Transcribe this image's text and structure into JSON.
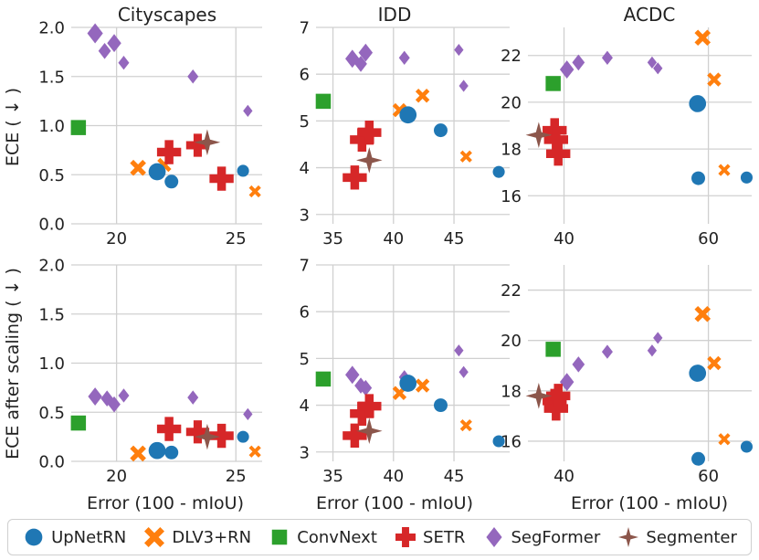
{
  "colors": {
    "UpNetRN": "#1f77b4",
    "DLV3+RN": "#ff7f0e",
    "ConvNext": "#2ca02c",
    "SETR": "#d62728",
    "SegFormer": "#9467bd",
    "Segmenter": "#8c564b",
    "grid": "#d0d0d0",
    "text": "#222222"
  },
  "legend": {
    "entries": [
      {
        "model": "UpNetRN",
        "label": "UpNetRN",
        "marker": "circle-icon"
      },
      {
        "model": "DLV3+RN",
        "label": "DLV3+RN",
        "marker": "cross-x-icon"
      },
      {
        "model": "ConvNext",
        "label": "ConvNext",
        "marker": "square-icon"
      },
      {
        "model": "SETR",
        "label": "SETR",
        "marker": "plus-icon"
      },
      {
        "model": "SegFormer",
        "label": "SegFormer",
        "marker": "diamond-icon"
      },
      {
        "model": "Segmenter",
        "label": "Segmenter",
        "marker": "star-icon"
      }
    ]
  },
  "chart_data": [
    {
      "type": "scatter",
      "title": "Cityscapes",
      "xlabel": "",
      "ylabel": "ECE ( ↓ )",
      "xlim": [
        18.1,
        26.1
      ],
      "ylim": [
        0,
        2.0
      ],
      "xticks": [
        20,
        25
      ],
      "yticks": [
        0.0,
        0.5,
        1.0,
        1.5,
        2.0
      ],
      "xticklabels": [
        "20",
        "25"
      ],
      "yticklabels": [
        "0.0",
        "0.5",
        "1.0",
        "1.5",
        "2.0"
      ],
      "grid": true,
      "series": [
        {
          "name": "UpNetRN",
          "points": [
            [
              21.7,
              0.53,
              1.0
            ],
            [
              22.3,
              0.43,
              0.8
            ],
            [
              25.3,
              0.54,
              0.7
            ]
          ]
        },
        {
          "name": "DLV3+RN",
          "points": [
            [
              20.9,
              0.57,
              0.8
            ],
            [
              22.0,
              0.6,
              0.7
            ],
            [
              25.8,
              0.33,
              0.6
            ]
          ]
        },
        {
          "name": "ConvNext",
          "points": [
            [
              18.4,
              0.98,
              1.0
            ]
          ]
        },
        {
          "name": "SETR",
          "points": [
            [
              22.2,
              0.73,
              1.2
            ],
            [
              23.4,
              0.8,
              1.15
            ],
            [
              24.4,
              0.46,
              1.2
            ]
          ]
        },
        {
          "name": "SegFormer",
          "points": [
            [
              19.1,
              1.94,
              1.0
            ],
            [
              19.5,
              1.76,
              0.8
            ],
            [
              19.9,
              1.84,
              0.9
            ],
            [
              20.3,
              1.64,
              0.7
            ],
            [
              23.2,
              1.5,
              0.7
            ],
            [
              25.5,
              1.15,
              0.6
            ]
          ]
        },
        {
          "name": "Segmenter",
          "points": [
            [
              23.8,
              0.83,
              1.3
            ]
          ]
        }
      ]
    },
    {
      "type": "scatter",
      "title": "IDD",
      "xlabel": "",
      "ylabel": "",
      "xlim": [
        33.6,
        49.6
      ],
      "ylim": [
        2.8,
        7.0
      ],
      "xticks": [
        35,
        40,
        45
      ],
      "yticks": [
        3,
        4,
        5,
        6,
        7
      ],
      "xticklabels": [
        "35",
        "40",
        "45"
      ],
      "yticklabels": [
        "3",
        "4",
        "5",
        "6",
        "7"
      ],
      "grid": true,
      "series": [
        {
          "name": "UpNetRN",
          "points": [
            [
              41.2,
              5.13,
              1.0
            ],
            [
              43.9,
              4.8,
              0.8
            ],
            [
              48.7,
              3.91,
              0.7
            ]
          ]
        },
        {
          "name": "DLV3+RN",
          "points": [
            [
              40.5,
              5.23,
              0.7
            ],
            [
              42.4,
              5.54,
              0.7
            ],
            [
              46.0,
              4.24,
              0.6
            ]
          ]
        },
        {
          "name": "ConvNext",
          "points": [
            [
              34.2,
              5.42,
              1.0
            ]
          ]
        },
        {
          "name": "SETR",
          "points": [
            [
              36.8,
              3.79,
              1.2
            ],
            [
              37.4,
              4.6,
              1.2
            ],
            [
              38.0,
              4.75,
              1.2
            ]
          ]
        },
        {
          "name": "SegFormer",
          "points": [
            [
              36.6,
              6.33,
              0.9
            ],
            [
              37.3,
              6.22,
              0.8
            ],
            [
              37.7,
              6.46,
              0.9
            ],
            [
              40.9,
              6.35,
              0.7
            ],
            [
              45.4,
              6.52,
              0.6
            ],
            [
              45.8,
              5.75,
              0.6
            ]
          ]
        },
        {
          "name": "Segmenter",
          "points": [
            [
              38.0,
              4.16,
              1.3
            ]
          ]
        }
      ]
    },
    {
      "type": "scatter",
      "title": "ACDC",
      "xlabel": "",
      "ylabel": "",
      "xlim": [
        35,
        66
      ],
      "ylim": [
        14.8,
        23.2
      ],
      "xticks": [
        40,
        60
      ],
      "yticks": [
        16,
        18,
        20,
        22
      ],
      "xticklabels": [
        "40",
        "60"
      ],
      "yticklabels": [
        "16",
        "18",
        "20",
        "22"
      ],
      "grid": true,
      "series": [
        {
          "name": "UpNetRN",
          "points": [
            [
              58.5,
              19.94,
              1.0
            ],
            [
              58.6,
              16.75,
              0.8
            ],
            [
              65.3,
              16.78,
              0.7
            ]
          ]
        },
        {
          "name": "DLV3+RN",
          "points": [
            [
              59.2,
              22.76,
              0.8
            ],
            [
              60.8,
              20.97,
              0.7
            ],
            [
              62.2,
              17.1,
              0.6
            ]
          ]
        },
        {
          "name": "ConvNext",
          "points": [
            [
              38.5,
              20.8,
              1.0
            ]
          ]
        },
        {
          "name": "SETR",
          "points": [
            [
              38.7,
              18.8,
              1.2
            ],
            [
              38.9,
              18.4,
              1.2
            ],
            [
              39.2,
              17.8,
              1.2
            ]
          ]
        },
        {
          "name": "SegFormer",
          "points": [
            [
              40.4,
              21.4,
              0.9
            ],
            [
              42.0,
              21.7,
              0.8
            ],
            [
              46.0,
              21.9,
              0.7
            ],
            [
              52.2,
              21.7,
              0.6
            ],
            [
              53.0,
              21.45,
              0.6
            ]
          ]
        },
        {
          "name": "Segmenter",
          "points": [
            [
              36.5,
              18.6,
              1.3
            ]
          ]
        }
      ]
    },
    {
      "type": "scatter",
      "title": "",
      "xlabel": "Error (100 - mIoU)",
      "ylabel": "ECE after scaling ( ↓ )",
      "xlim": [
        18.1,
        26.1
      ],
      "ylim": [
        0,
        2.0
      ],
      "xticks": [
        20,
        25
      ],
      "yticks": [
        0.0,
        0.5,
        1.0,
        1.5,
        2.0
      ],
      "xticklabels": [
        "20",
        "25"
      ],
      "yticklabels": [
        "0.0",
        "0.5",
        "1.0",
        "1.5",
        "2.0"
      ],
      "grid": true,
      "series": [
        {
          "name": "UpNetRN",
          "points": [
            [
              21.7,
              0.11,
              1.0
            ],
            [
              22.3,
              0.09,
              0.8
            ],
            [
              25.3,
              0.25,
              0.7
            ]
          ]
        },
        {
          "name": "DLV3+RN",
          "points": [
            [
              20.9,
              0.08,
              0.8
            ],
            [
              25.8,
              0.1,
              0.6
            ]
          ]
        },
        {
          "name": "ConvNext",
          "points": [
            [
              18.4,
              0.39,
              1.0
            ]
          ]
        },
        {
          "name": "SETR",
          "points": [
            [
              22.2,
              0.33,
              1.2
            ],
            [
              23.4,
              0.3,
              1.15
            ],
            [
              24.4,
              0.26,
              1.2
            ]
          ]
        },
        {
          "name": "SegFormer",
          "points": [
            [
              19.1,
              0.66,
              0.9
            ],
            [
              19.6,
              0.64,
              0.8
            ],
            [
              19.9,
              0.58,
              0.8
            ],
            [
              20.3,
              0.67,
              0.7
            ],
            [
              23.2,
              0.65,
              0.7
            ],
            [
              25.5,
              0.48,
              0.6
            ]
          ]
        },
        {
          "name": "Segmenter",
          "points": [
            [
              23.8,
              0.25,
              1.3
            ]
          ]
        }
      ]
    },
    {
      "type": "scatter",
      "title": "",
      "xlabel": "Error (100 - mIoU)",
      "ylabel": "",
      "xlim": [
        33.6,
        49.6
      ],
      "ylim": [
        2.8,
        7.0
      ],
      "xticks": [
        35,
        40,
        45
      ],
      "yticks": [
        3,
        4,
        5,
        6,
        7
      ],
      "xticklabels": [
        "35",
        "40",
        "45"
      ],
      "yticklabels": [
        "3",
        "4",
        "5",
        "6",
        "7"
      ],
      "grid": true,
      "series": [
        {
          "name": "UpNetRN",
          "points": [
            [
              41.2,
              4.47,
              1.0
            ],
            [
              43.9,
              4.0,
              0.8
            ],
            [
              48.7,
              3.23,
              0.7
            ]
          ]
        },
        {
          "name": "DLV3+RN",
          "points": [
            [
              40.5,
              4.26,
              0.7
            ],
            [
              42.4,
              4.42,
              0.7
            ],
            [
              46.0,
              3.57,
              0.6
            ]
          ]
        },
        {
          "name": "ConvNext",
          "points": [
            [
              34.2,
              4.56,
              1.0
            ]
          ]
        },
        {
          "name": "SETR",
          "points": [
            [
              36.8,
              3.35,
              1.2
            ],
            [
              37.4,
              3.82,
              1.2
            ],
            [
              38.0,
              3.98,
              1.2
            ]
          ]
        },
        {
          "name": "SegFormer",
          "points": [
            [
              36.6,
              4.65,
              0.9
            ],
            [
              37.3,
              4.42,
              0.8
            ],
            [
              37.7,
              4.37,
              0.8
            ],
            [
              40.9,
              4.6,
              0.7
            ],
            [
              45.4,
              5.17,
              0.6
            ],
            [
              45.8,
              4.71,
              0.6
            ]
          ]
        },
        {
          "name": "Segmenter",
          "points": [
            [
              38.0,
              3.45,
              1.3
            ]
          ]
        }
      ]
    },
    {
      "type": "scatter",
      "title": "",
      "xlabel": "Error (100 - mIoU)",
      "ylabel": "",
      "xlim": [
        35,
        66
      ],
      "ylim": [
        15.2,
        23.0
      ],
      "xticks": [
        40,
        60
      ],
      "yticks": [
        16,
        18,
        20,
        22
      ],
      "xticklabels": [
        "40",
        "60"
      ],
      "yticklabels": [
        "16",
        "18",
        "20",
        "22"
      ],
      "grid": true,
      "series": [
        {
          "name": "UpNetRN",
          "points": [
            [
              58.5,
              18.7,
              1.0
            ],
            [
              58.6,
              15.3,
              0.8
            ],
            [
              65.3,
              15.78,
              0.7
            ]
          ]
        },
        {
          "name": "DLV3+RN",
          "points": [
            [
              59.2,
              21.05,
              0.8
            ],
            [
              60.8,
              19.1,
              0.7
            ],
            [
              62.2,
              16.08,
              0.6
            ]
          ]
        },
        {
          "name": "ConvNext",
          "points": [
            [
              38.5,
              19.65,
              1.0
            ]
          ]
        },
        {
          "name": "SETR",
          "points": [
            [
              38.7,
              17.6,
              1.2
            ],
            [
              38.9,
              17.3,
              1.2
            ],
            [
              39.2,
              17.8,
              1.2
            ]
          ]
        },
        {
          "name": "SegFormer",
          "points": [
            [
              40.4,
              18.35,
              0.9
            ],
            [
              42.0,
              19.05,
              0.8
            ],
            [
              46.0,
              19.55,
              0.7
            ],
            [
              52.2,
              19.6,
              0.6
            ],
            [
              53.0,
              20.1,
              0.6
            ]
          ]
        },
        {
          "name": "Segmenter",
          "points": [
            [
              36.5,
              17.8,
              1.3
            ]
          ]
        }
      ]
    }
  ]
}
